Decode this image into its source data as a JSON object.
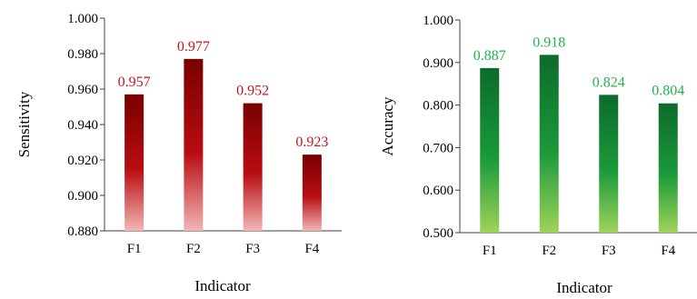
{
  "chart_data": [
    {
      "type": "bar",
      "categories": [
        "F1",
        "F2",
        "F3",
        "F4"
      ],
      "values": [
        0.957,
        0.977,
        0.952,
        0.923
      ],
      "data_labels": [
        "0.957",
        "0.977",
        "0.952",
        "0.923"
      ],
      "ylabel": "Sensitivity",
      "xlabel": "Indicator",
      "ylim": [
        0.88,
        1.0
      ],
      "yticks": [
        "1.000",
        "0.980",
        "0.960",
        "0.940",
        "0.920",
        "0.900",
        "0.880"
      ],
      "grid": false,
      "colors": {
        "bar_top": "#7a0000",
        "bar_mid": "#b80d12",
        "bar_bottom": "#f2b6b6",
        "label": "#c0161b"
      }
    },
    {
      "type": "bar",
      "categories": [
        "F1",
        "F2",
        "F3",
        "F4"
      ],
      "values": [
        0.887,
        0.918,
        0.824,
        0.804
      ],
      "data_labels": [
        "0.887",
        "0.918",
        "0.824",
        "0.804"
      ],
      "ylabel": "Accuracy",
      "xlabel": "Indicator",
      "ylim": [
        0.5,
        1.0
      ],
      "yticks": [
        "1.000",
        "0.900",
        "0.800",
        "0.700",
        "0.600",
        "0.500"
      ],
      "grid": false,
      "colors": {
        "bar_top": "#0d6a2b",
        "bar_mid": "#1a9a3a",
        "bar_bottom": "#9fd35a",
        "label": "#22b14c"
      }
    }
  ]
}
